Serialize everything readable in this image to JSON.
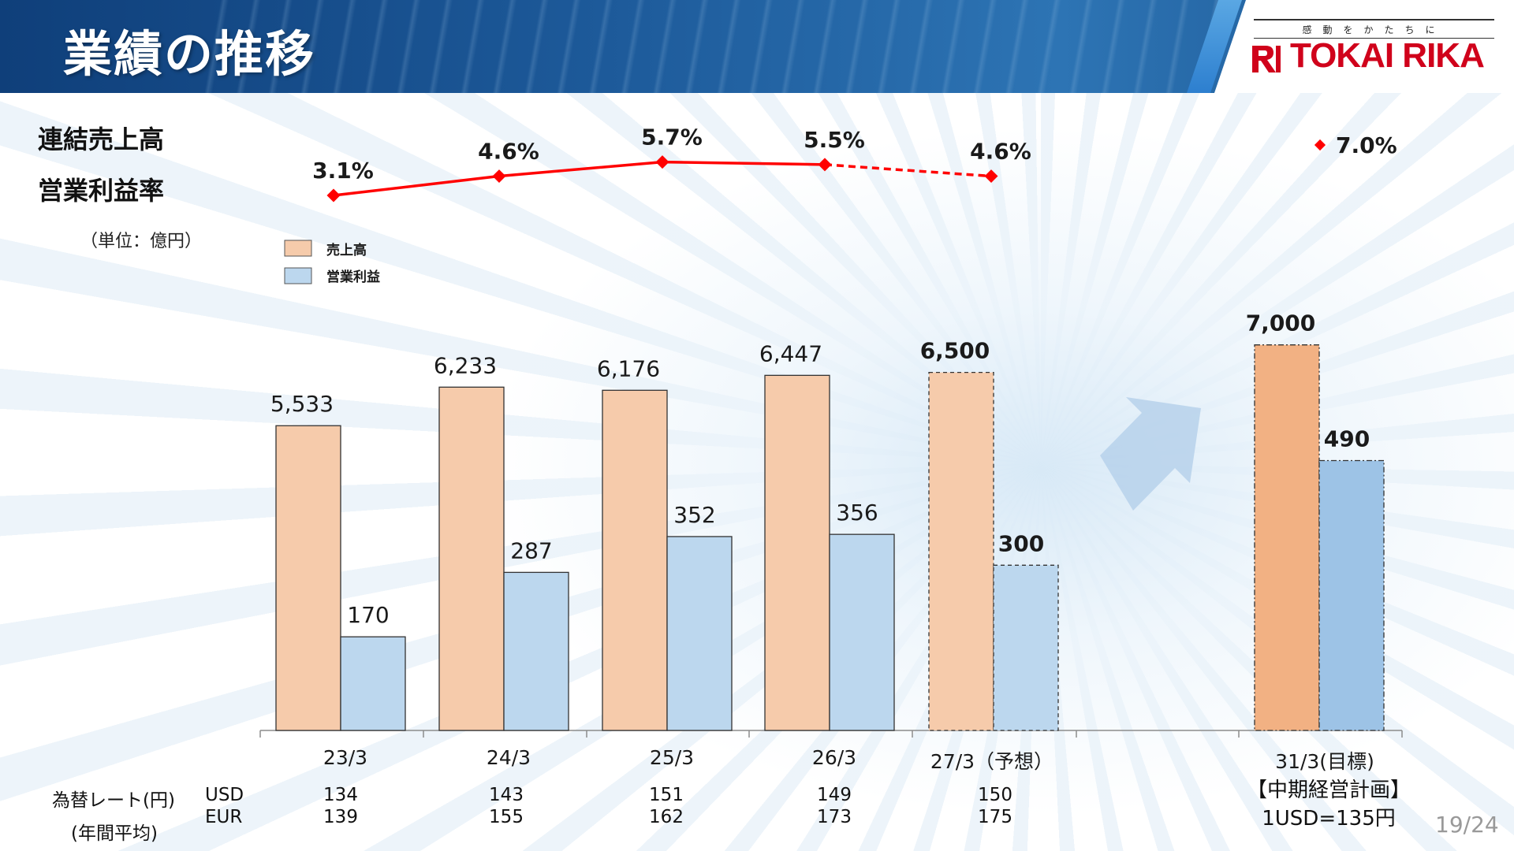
{
  "header": {
    "title": "業績の推移",
    "tagline": "感動をかたちに",
    "brand": "TOKAI RIKA"
  },
  "side_titles": [
    "連結売上高",
    "営業利益率"
  ],
  "unit": "（単位：億円）",
  "colors": {
    "sales": "#f6cbab",
    "op_profit": "#bcd7ee",
    "sales_target": "#f2b183",
    "op_profit_target": "#9dc3e6",
    "margin_line": "#ff0000"
  },
  "chart_data": {
    "type": "bar",
    "title": "",
    "xlabel": "",
    "ylabel": "",
    "categories": [
      "23/3",
      "24/3",
      "25/3",
      "26/3",
      "27/3（予想）",
      "31/3(目標)"
    ],
    "series": [
      {
        "name": "売上高",
        "values": [
          5533,
          6233,
          6176,
          6447,
          6500,
          7000
        ],
        "labels": [
          "5,533",
          "6,233",
          "6,176",
          "6,447",
          "6,500",
          "7,000"
        ]
      },
      {
        "name": "営業利益",
        "values": [
          170,
          287,
          352,
          356,
          300,
          490
        ],
        "labels": [
          "170",
          "287",
          "352",
          "356",
          "300",
          "490"
        ]
      }
    ],
    "operating_margin": {
      "values": [
        3.1,
        4.6,
        5.7,
        5.5,
        4.6,
        7.0
      ],
      "labels": [
        "3.1%",
        "4.6%",
        "5.7%",
        "5.5%",
        "4.6%",
        "7.0%"
      ],
      "line_style": "solid for actuals, dashed to forecast, target shown as standalone marker"
    },
    "forecast_categories": [
      "27/3（予想）"
    ],
    "target_categories": [
      "31/3(目標)"
    ],
    "legend_placement": "top-left",
    "grid": false
  },
  "fx": {
    "title_line1": "為替レート(円)",
    "title_line2": "(年間平均)",
    "usd_label": "USD",
    "eur_label": "EUR",
    "usd": [
      "134",
      "143",
      "151",
      "149",
      "150"
    ],
    "eur": [
      "139",
      "155",
      "162",
      "173",
      "175"
    ]
  },
  "plan_note": {
    "line1": "【中期経営計画】",
    "line2": "1USD=135円"
  },
  "page_number": "19/24"
}
